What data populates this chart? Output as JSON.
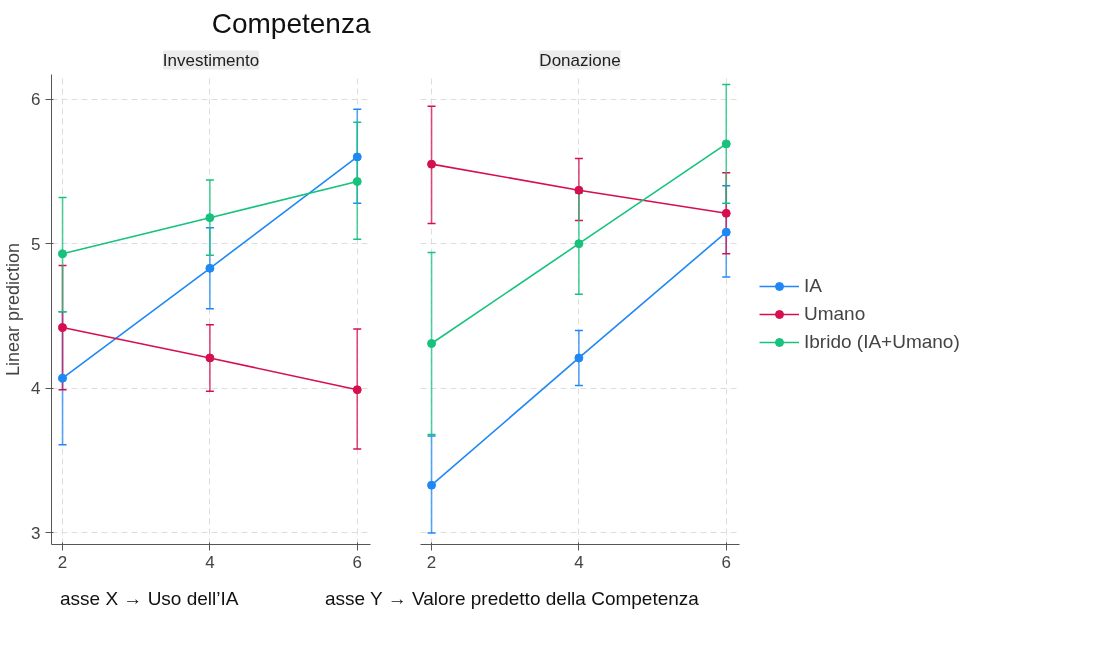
{
  "chart_data": [
    {
      "type": "line",
      "title": "Competenza",
      "subtitle": "Investimento",
      "ylabel": "Linear prediction",
      "x": [
        2,
        4,
        6
      ],
      "xlim": [
        1.85,
        6.18
      ],
      "xticks": [
        2,
        4,
        6
      ],
      "ylim": [
        2.92,
        6.17
      ],
      "yticks": [
        3,
        4,
        5,
        6
      ],
      "grid": true,
      "marker": "circle",
      "line_style": "solid",
      "legend": false,
      "series": [
        {
          "color": "#1f88f5",
          "values": [
            4.07,
            4.83,
            5.6
          ],
          "errors": [
            [
              3.61,
              4.53
            ],
            [
              4.55,
              5.11
            ],
            [
              5.28,
              5.93
            ]
          ]
        },
        {
          "color": "#d6104f",
          "values": [
            4.42,
            4.21,
            3.99
          ],
          "errors": [
            [
              3.99,
              4.85
            ],
            [
              3.98,
              4.44
            ],
            [
              3.58,
              4.41
            ]
          ]
        },
        {
          "color": "#16c27c",
          "values": [
            4.93,
            5.18,
            5.43
          ],
          "errors": [
            [
              4.53,
              5.32
            ],
            [
              4.92,
              5.44
            ],
            [
              5.03,
              5.84
            ]
          ]
        }
      ],
      "annotations": [
        "asse X → Uso dell’IA",
        "asse Y → Valore predetto della Competenza"
      ]
    },
    {
      "type": "line",
      "subtitle": "Donazione",
      "x": [
        2,
        4,
        6
      ],
      "xlim": [
        1.85,
        6.18
      ],
      "xticks": [
        2,
        4,
        6
      ],
      "ylim": [
        2.92,
        6.17
      ],
      "yticks": [
        3,
        4,
        5,
        6
      ],
      "grid": true,
      "marker": "circle",
      "line_style": "solid",
      "legend": "right",
      "tick_labels": "x",
      "series": [
        {
          "name": "IA",
          "color": "#1f88f5",
          "values": [
            3.33,
            4.21,
            5.08
          ],
          "errors": [
            [
              3.0,
              3.67
            ],
            [
              4.02,
              4.4
            ],
            [
              4.77,
              5.4
            ]
          ]
        },
        {
          "name": "Umano",
          "color": "#d6104f",
          "values": [
            5.55,
            5.37,
            5.21
          ],
          "errors": [
            [
              5.14,
              5.95
            ],
            [
              5.16,
              5.59
            ],
            [
              4.93,
              5.49
            ]
          ]
        },
        {
          "name": "Ibrido (IA+Umano)",
          "color": "#16c27c",
          "values": [
            4.31,
            5.0,
            5.69
          ],
          "errors": [
            [
              3.68,
              4.94
            ],
            [
              4.65,
              5.35
            ],
            [
              5.28,
              6.1
            ]
          ]
        }
      ]
    }
  ]
}
